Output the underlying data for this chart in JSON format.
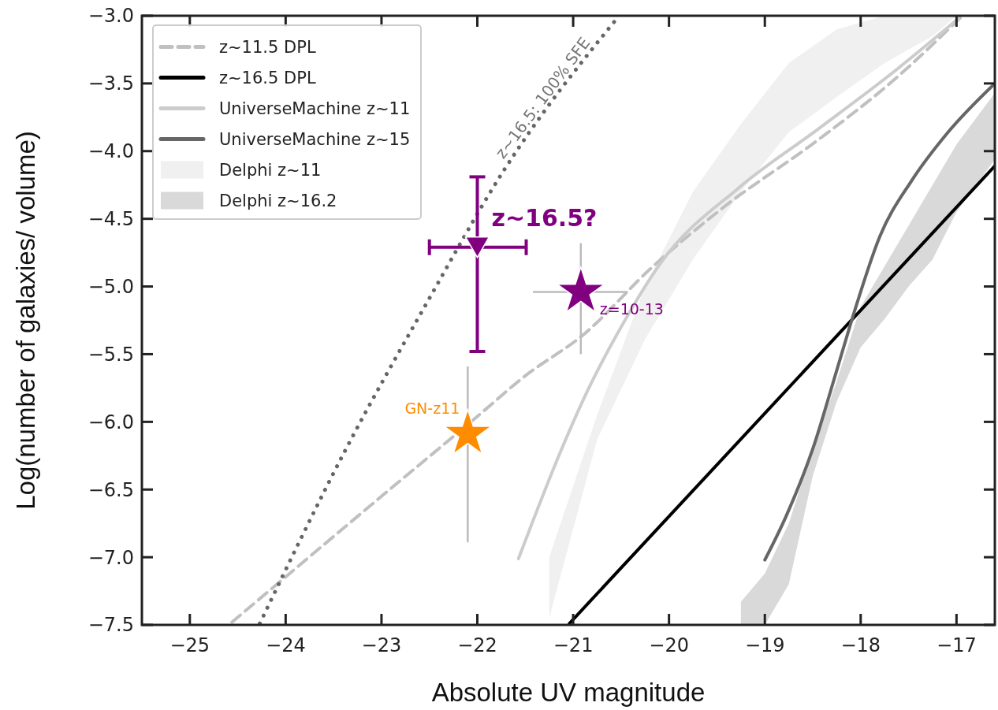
{
  "chart_data": {
    "type": "line",
    "xlabel": "Absolute UV magnitude",
    "ylabel": "Log(number of galaxies/ volume)",
    "xlim": [
      -25.5,
      -16.6
    ],
    "ylim": [
      -7.5,
      -3.0
    ],
    "xticks": [
      {
        "value": -25,
        "label": "−25"
      },
      {
        "value": -24,
        "label": "−24"
      },
      {
        "value": -23,
        "label": "−23"
      },
      {
        "value": -22,
        "label": "−22"
      },
      {
        "value": -21,
        "label": "−21"
      },
      {
        "value": -20,
        "label": "−20"
      },
      {
        "value": -19,
        "label": "−19"
      },
      {
        "value": -18,
        "label": "−18"
      },
      {
        "value": -17,
        "label": "−17"
      }
    ],
    "yticks": [
      {
        "value": -3,
        "label": "−3.0"
      },
      {
        "value": -3.5,
        "label": "−3.5"
      },
      {
        "value": -4,
        "label": "−4.0"
      },
      {
        "value": -4.5,
        "label": "−4.5"
      },
      {
        "value": -5,
        "label": "−5.0"
      },
      {
        "value": -5.5,
        "label": "−5.5"
      },
      {
        "value": -6,
        "label": "−6.0"
      },
      {
        "value": -6.5,
        "label": "−6.5"
      },
      {
        "value": -7,
        "label": "−7.0"
      },
      {
        "value": -7.5,
        "label": "−7.5"
      }
    ],
    "legend": "top left",
    "grid": false,
    "series": [
      {
        "name": "Delphi z~11",
        "type": "area",
        "color": "#f0f0f0",
        "x": [
          -21.25,
          -20.75,
          -20.25,
          -19.75,
          -19.25,
          -18.75,
          -18.25,
          -17.75,
          -17.25,
          -17.0
        ],
        "values": [
          null,
          null,
          null,
          null,
          null,
          null,
          null,
          null,
          null,
          null
        ],
        "lower": [
          -7.45,
          -6.13,
          -5.39,
          -4.8,
          -4.3,
          -3.86,
          -3.6,
          -3.35,
          -3.15,
          -3.0
        ],
        "upper": [
          -7.0,
          -5.95,
          -5.0,
          -4.3,
          -3.8,
          -3.35,
          -3.1,
          -3.0,
          -3.0,
          -3.0
        ]
      },
      {
        "name": "Delphi z~16.2",
        "type": "area",
        "color": "#d9d9d9",
        "x": [
          -19.25,
          -19.0,
          -18.75,
          -18.5,
          -18.25,
          -18.0,
          -17.75,
          -17.5,
          -17.25,
          -17.0,
          -16.6
        ],
        "values": [
          null,
          null,
          null,
          null,
          null,
          null,
          null,
          null,
          null,
          null,
          null
        ],
        "lower": [
          -7.5,
          -7.5,
          -7.2,
          -6.4,
          -5.85,
          -5.45,
          -5.24,
          -5.0,
          -4.8,
          -4.45,
          -4.06
        ],
        "upper": [
          -7.33,
          -7.12,
          -6.75,
          -6.2,
          -5.7,
          -5.15,
          -4.85,
          -4.55,
          -4.25,
          -3.95,
          -3.57
        ]
      },
      {
        "name": "z~11.5 DPL",
        "color": "#c0c0c0",
        "line_style": "dashed",
        "x": [
          -24.56,
          -23,
          -22,
          -21.5,
          -20.9,
          -20.18,
          -19.44,
          -18.45,
          -17.63,
          -16.94
        ],
        "values": [
          -7.48,
          -6.55,
          -5.96,
          -5.66,
          -5.36,
          -4.86,
          -4.42,
          -3.92,
          -3.46,
          -3.0
        ]
      },
      {
        "name": "z~16.5 DPL",
        "color": "#000000",
        "line_style": "solid",
        "x": [
          -21.04,
          -16.6
        ],
        "values": [
          -7.49,
          -4.11
        ]
      },
      {
        "name": "UniverseMachine z~11",
        "color": "#cccccc",
        "line_style": "solid",
        "x": [
          -21.57,
          -21.12,
          -20.87,
          -20.5,
          -20.09,
          -19.27,
          -18.45,
          -17.63,
          -16.98
        ],
        "values": [
          -7.01,
          -6.2,
          -5.8,
          -5.3,
          -4.83,
          -4.27,
          -3.84,
          -3.4,
          -3.02
        ]
      },
      {
        "name": "UniverseMachine z~15",
        "color": "#666666",
        "line_style": "solid",
        "x": [
          -19.0,
          -18.78,
          -18.5,
          -18.25,
          -18.05,
          -17.8,
          -17.47,
          -17.1,
          -16.6
        ],
        "values": [
          -7.02,
          -6.7,
          -6.2,
          -5.62,
          -5.15,
          -4.63,
          -4.22,
          -3.87,
          -3.5
        ]
      },
      {
        "color": "#666666",
        "line_style": "dotted",
        "x": [
          -24.27,
          -23.37,
          -22.55,
          -21.73,
          -20.52
        ],
        "values": [
          -7.49,
          -6.2,
          -5.15,
          -4.15,
          -3.0
        ]
      },
      {
        "type": "scatter",
        "color": "#ff8c00",
        "marker": "star",
        "x": [
          -22.1
        ],
        "values": [
          -6.09
        ],
        "errors": [
          [
            -6.89,
            -5.59
          ]
        ]
      },
      {
        "type": "scatter",
        "color": "#800080",
        "marker": "star",
        "x": [
          -20.92
        ],
        "values": [
          -5.04
        ],
        "errors": [
          [
            -5.5,
            -4.68
          ]
        ],
        "xerrors": [
          [
            -21.42,
            -20.43
          ]
        ]
      },
      {
        "type": "scatter",
        "color": "#800080",
        "marker": "triangle",
        "x": [
          -22.0
        ],
        "values": [
          -4.71
        ],
        "errors": [
          [
            -5.48,
            -4.19
          ]
        ],
        "xerrors": [
          [
            -22.5,
            -21.49
          ]
        ]
      }
    ],
    "annotations": [
      {
        "text": "z~16.5?",
        "x": -22.0,
        "y": -4.71
      },
      {
        "text": "z=10-13",
        "x": -20.92,
        "y": -5.04
      },
      {
        "text": "GN-z11",
        "x": -22.1,
        "y": -6.09
      },
      {
        "text": "z~16.5: 100% SFE",
        "x": -21.2,
        "y": -3.67
      }
    ]
  }
}
